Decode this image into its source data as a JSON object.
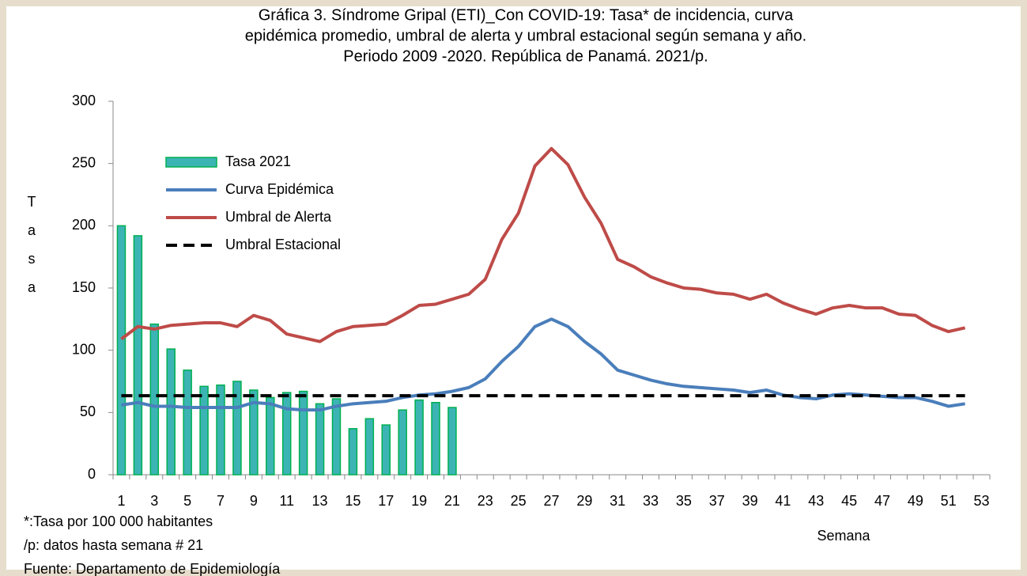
{
  "chart_data": {
    "type": "bar-line",
    "title": [
      "Gráfica 3. Síndrome Gripal (ETI)_Con COVID-19: Tasa* de incidencia, curva",
      "epidémica promedio, umbral de alerta y umbral estacional según semana y año.",
      "Periodo 2009 -2020.  República de Panamá. 2021/p."
    ],
    "x_label": "Semana",
    "y_label": "Tasa",
    "notes": [
      "*:Tasa por 100 000 habitantes",
      "/p: datos hasta semana # 21",
      "Fuente: Departamento de Epidemiología"
    ],
    "x": [
      1,
      2,
      3,
      4,
      5,
      6,
      7,
      8,
      9,
      10,
      11,
      12,
      13,
      14,
      15,
      16,
      17,
      18,
      19,
      20,
      21,
      22,
      23,
      24,
      25,
      26,
      27,
      28,
      29,
      30,
      31,
      32,
      33,
      34,
      35,
      36,
      37,
      38,
      39,
      40,
      41,
      42,
      43,
      44,
      45,
      46,
      47,
      48,
      49,
      50,
      51,
      52
    ],
    "xlim": [
      0.5,
      53.5
    ],
    "xticks": [
      1,
      3,
      5,
      7,
      9,
      11,
      13,
      15,
      17,
      19,
      21,
      23,
      25,
      27,
      29,
      31,
      33,
      35,
      37,
      39,
      41,
      43,
      45,
      47,
      49,
      51,
      53
    ],
    "ylim": [
      0,
      300
    ],
    "yticks": [
      0,
      50,
      100,
      150,
      200,
      250,
      300
    ],
    "legend": "upper left",
    "series": [
      {
        "name": "Tasa 2021",
        "kind": "bar",
        "color": "#3cb4b4",
        "values": [
          200,
          192,
          121,
          101,
          84,
          71,
          72,
          75,
          68,
          62,
          66,
          67,
          57,
          61,
          37,
          45,
          40,
          52,
          60,
          58,
          54,
          null,
          null,
          null,
          null,
          null,
          null,
          null,
          null,
          null,
          null,
          null,
          null,
          null,
          null,
          null,
          null,
          null,
          null,
          null,
          null,
          null,
          null,
          null,
          null,
          null,
          null,
          null,
          null,
          null,
          null,
          null
        ]
      },
      {
        "name": "Curva Epidémica",
        "kind": "line",
        "color": "#4a7ebb",
        "values": [
          56,
          58,
          55,
          55,
          54,
          54,
          54,
          54,
          58,
          57,
          53,
          52,
          52,
          55,
          57,
          58,
          59,
          62,
          64,
          65,
          67,
          70,
          77,
          91,
          103,
          119,
          125,
          119,
          107,
          97,
          84,
          80,
          76,
          73,
          71,
          70,
          69,
          68,
          66,
          68,
          64,
          62,
          61,
          64,
          65,
          64,
          63,
          62,
          62,
          59,
          55,
          57
        ]
      },
      {
        "name": "Umbral de Alerta",
        "kind": "line",
        "color": "#be4b48",
        "values": [
          109,
          119,
          117,
          120,
          121,
          122,
          122,
          119,
          128,
          124,
          113,
          110,
          107,
          115,
          119,
          120,
          121,
          128,
          136,
          137,
          141,
          145,
          157,
          189,
          210,
          248,
          262,
          249,
          223,
          202,
          173,
          167,
          159,
          154,
          150,
          149,
          146,
          145,
          141,
          145,
          138,
          133,
          129,
          134,
          136,
          134,
          134,
          129,
          128,
          120,
          115,
          118
        ]
      },
      {
        "name": "Umbral Estacional",
        "kind": "dashed",
        "color": "#000000",
        "values": [
          63.5,
          63.5,
          63.5,
          63.5,
          63.5,
          63.5,
          63.5,
          63.5,
          63.5,
          63.5,
          63.5,
          63.5,
          63.5,
          63.5,
          63.5,
          63.5,
          63.5,
          63.5,
          63.5,
          63.5,
          63.5,
          63.5,
          63.5,
          63.5,
          63.5,
          63.5,
          63.5,
          63.5,
          63.5,
          63.5,
          63.5,
          63.5,
          63.5,
          63.5,
          63.5,
          63.5,
          63.5,
          63.5,
          63.5,
          63.5,
          63.5,
          63.5,
          63.5,
          63.5,
          63.5,
          63.5,
          63.5,
          63.5,
          63.5,
          63.5,
          63.5,
          63.5
        ]
      }
    ]
  }
}
